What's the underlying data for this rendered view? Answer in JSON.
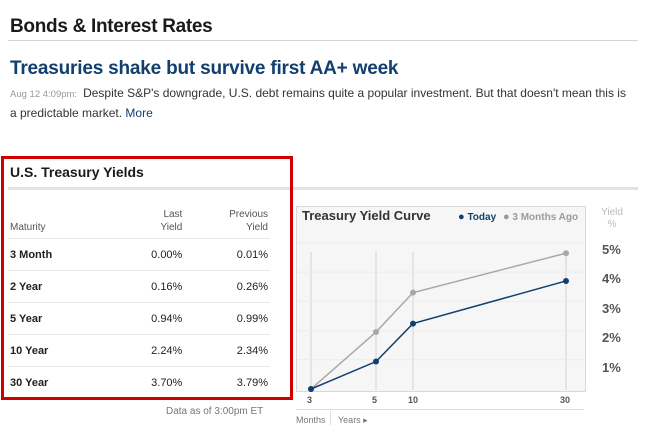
{
  "section": {
    "title": "Bonds & Interest Rates"
  },
  "article": {
    "headline": "Treasuries shake but survive first AA+ week",
    "timestamp": "Aug 12 4:09pm:",
    "summary": "Despite S&P's downgrade, U.S. debt remains quite a popular investment. But that doesn't mean this is a predictable market.",
    "more_label": "More"
  },
  "yields": {
    "title": "U.S. Treasury Yields",
    "columns": {
      "maturity": "Maturity",
      "last_l1": "Last",
      "last_l2": "Yield",
      "prev_l1": "Previous",
      "prev_l2": "Yield"
    },
    "rows": [
      {
        "maturity": "3 Month",
        "last": "0.00%",
        "previous": "0.01%"
      },
      {
        "maturity": "2 Year",
        "last": "0.16%",
        "previous": "0.26%"
      },
      {
        "maturity": "5 Year",
        "last": "0.94%",
        "previous": "0.99%"
      },
      {
        "maturity": "10 Year",
        "last": "2.24%",
        "previous": "2.34%"
      },
      {
        "maturity": "30 Year",
        "last": "3.70%",
        "previous": "3.79%"
      }
    ],
    "data_as_of": "Data as of 3:00pm ET"
  },
  "chart_data": {
    "type": "line",
    "title": "Treasury Yield Curve",
    "x": [
      0.25,
      5,
      10,
      30
    ],
    "xtick_labels": [
      "3",
      "5",
      "10",
      "30"
    ],
    "series": [
      {
        "name": "Today",
        "values": [
          0.0,
          0.94,
          2.24,
          3.7
        ],
        "color": "#123f6e"
      },
      {
        "name": "3 Months Ago",
        "values": [
          0.0,
          1.95,
          3.3,
          4.65
        ],
        "color": "#a8a8a8"
      }
    ],
    "ylabel_line1": "Yield",
    "ylabel_line2": "%",
    "ytick_labels": [
      "5%",
      "4%",
      "3%",
      "2%",
      "1%"
    ],
    "ylim": [
      0,
      5
    ],
    "legend_position": "top-right",
    "x_units": {
      "months": "Months",
      "years": "Years ▸"
    }
  }
}
